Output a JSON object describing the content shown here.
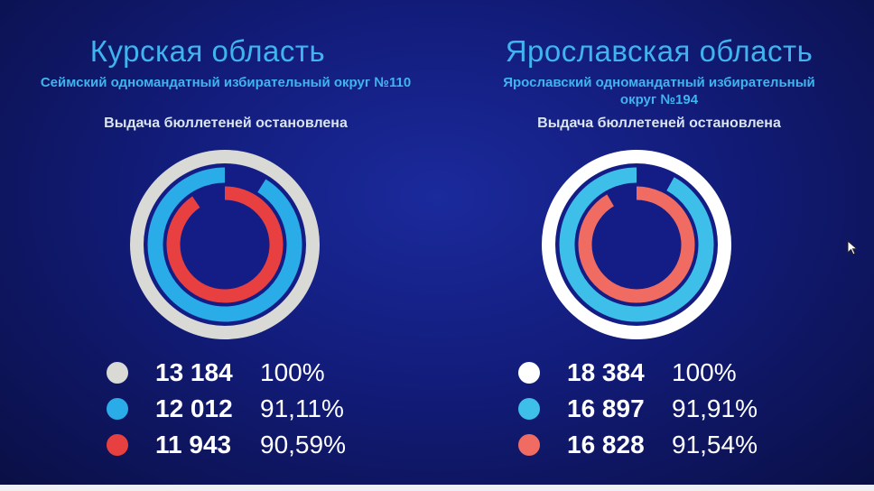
{
  "chart_data": [
    {
      "type": "donut",
      "title": "Курская область",
      "subtitle": "Сеймский одномандатный избирательный округ №110",
      "note": "Выдача бюллетеней остановлена",
      "colors": [
        "#d9d9d6",
        "#2aace8",
        "#e84040"
      ],
      "rows": [
        {
          "count": "13 184",
          "percent_label": "100%",
          "value": 100
        },
        {
          "count": "12 012",
          "percent_label": "91,11%",
          "value": 91.11
        },
        {
          "count": "11 943",
          "percent_label": "90,59%",
          "value": 90.59
        }
      ]
    },
    {
      "type": "donut",
      "title": "Ярославская область",
      "subtitle": "Ярославский одномандатный избирательный округ №194",
      "note": "Выдача бюллетеней остановлена",
      "colors": [
        "#ffffff",
        "#3ebfe9",
        "#f06b62"
      ],
      "rows": [
        {
          "count": "18 384",
          "percent_label": "100%",
          "value": 100
        },
        {
          "count": "16 897",
          "percent_label": "91,91%",
          "value": 91.91
        },
        {
          "count": "16 828",
          "percent_label": "91,54%",
          "value": 91.54
        }
      ]
    }
  ]
}
